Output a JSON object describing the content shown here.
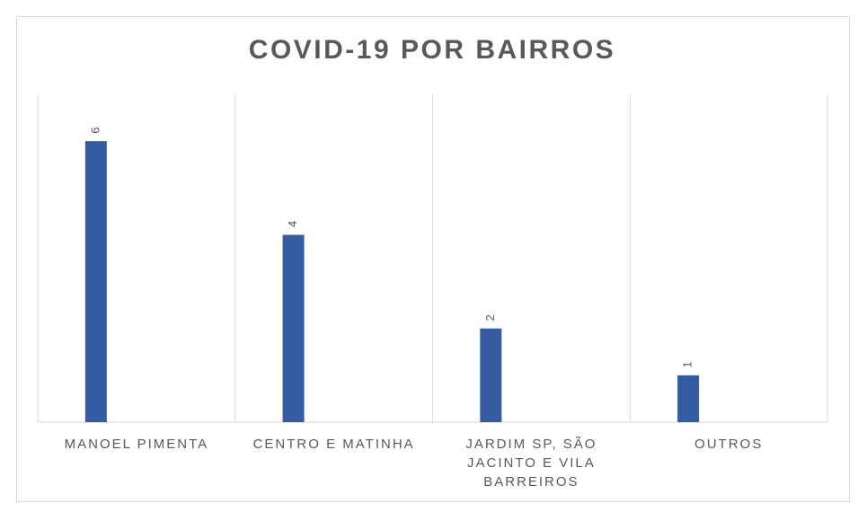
{
  "chart_data": {
    "type": "bar",
    "title": "COVID-19 POR BAIRROS",
    "categories": [
      "MANOEL PIMENTA",
      "CENTRO E MATINHA",
      "JARDIM SP, SÃO JACINTO E VILA BARREIROS",
      "OUTROS"
    ],
    "values": [
      6,
      4,
      2,
      1
    ],
    "color": "#335ca2",
    "ylim": [
      0,
      7
    ]
  }
}
